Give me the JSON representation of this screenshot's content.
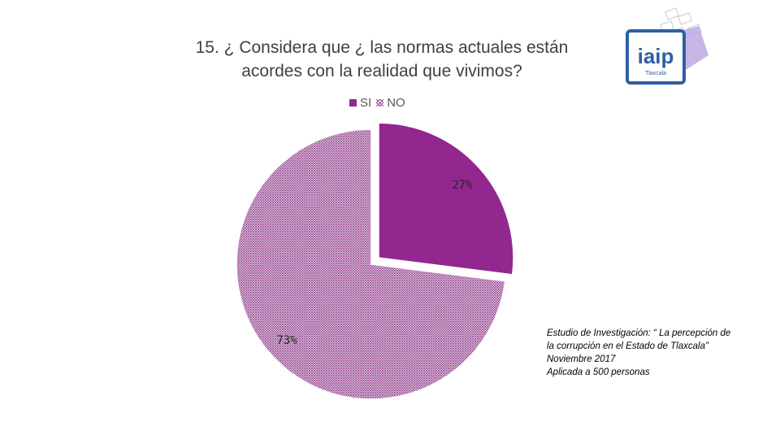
{
  "chart_data": {
    "type": "pie",
    "title": "15. ¿ Considera que ¿ las normas actuales están acordes con la realidad que vivimos?",
    "title_lines": [
      "15. ¿ Considera que ¿ las normas actuales están",
      "acordes con la realidad que vivimos?"
    ],
    "categories": [
      "SI",
      "NO"
    ],
    "values": [
      27,
      73
    ],
    "data_labels": [
      "27%",
      "73%"
    ],
    "colors": [
      "#92278f",
      "#9a4d96"
    ],
    "pattern": [
      "solid",
      "crosshatch"
    ],
    "exploded": "SI",
    "legend_placement": "top"
  },
  "legend": {
    "si": "SI",
    "no": "NO"
  },
  "logo": {
    "text": "iaip",
    "subtitle": "Tlaxcala",
    "accent": "#2e5fa3",
    "shadow": "#b9a3e0"
  },
  "note": {
    "line1": "Estudio de Investigación: “ La percepción de",
    "line2": "la corrupción en el Estado de Tlaxcala”",
    "line3": "Noviembre 2017",
    "line4": "Aplicada a 500 personas"
  }
}
